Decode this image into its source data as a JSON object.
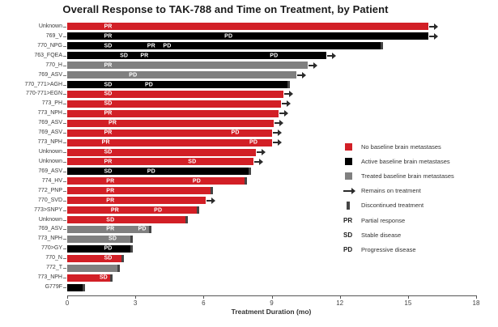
{
  "title": "Overall Response to TAK-788 and Time on Treatment, by Patient",
  "chart_data": {
    "type": "bar",
    "variant": "swimmer-plot",
    "orientation": "horizontal",
    "title": "Overall Response to TAK-788 and Time on Treatment, by Patient",
    "xlabel": "Treatment Duration (mo)",
    "ylabel": "",
    "xlim": [
      0,
      18
    ],
    "xticks": [
      0,
      3,
      6,
      9,
      12,
      15,
      18
    ],
    "grid": false,
    "legend_position": "right",
    "colors": {
      "no_baseline": "#d21f26",
      "active_baseline": "#000000",
      "treated_baseline": "#808080",
      "discontinued_marker": "#454545",
      "arrow": "#2b2b2b",
      "axis": "#555555",
      "bar_label": "#ffffff",
      "text": "#3a3a3a"
    },
    "patients": [
      {
        "label": "Unknown",
        "group": "no_baseline",
        "duration_mo": 15.9,
        "status": "ongoing",
        "responses": [
          {
            "t_mo": 1.8,
            "code": "PR"
          }
        ]
      },
      {
        "label": "769_V",
        "group": "active_baseline",
        "duration_mo": 15.9,
        "status": "ongoing",
        "responses": [
          {
            "t_mo": 1.8,
            "code": "PR"
          },
          {
            "t_mo": 7.1,
            "code": "PD"
          }
        ]
      },
      {
        "label": "770_NPG",
        "group": "active_baseline",
        "duration_mo": 13.9,
        "status": "discontinued",
        "responses": [
          {
            "t_mo": 1.8,
            "code": "SD"
          },
          {
            "t_mo": 3.7,
            "code": "PR"
          },
          {
            "t_mo": 4.4,
            "code": "PD"
          }
        ]
      },
      {
        "label": "763_FQEA",
        "group": "active_baseline",
        "duration_mo": 11.4,
        "status": "ongoing",
        "responses": [
          {
            "t_mo": 2.5,
            "code": "SD"
          },
          {
            "t_mo": 3.4,
            "code": "PR"
          },
          {
            "t_mo": 9.1,
            "code": "PD"
          }
        ]
      },
      {
        "label": "770_H",
        "group": "treated_baseline",
        "duration_mo": 10.6,
        "status": "ongoing",
        "responses": [
          {
            "t_mo": 1.8,
            "code": "PR"
          }
        ]
      },
      {
        "label": "769_ASV",
        "group": "treated_baseline",
        "duration_mo": 10.1,
        "status": "ongoing",
        "responses": [
          {
            "t_mo": 2.9,
            "code": "PD"
          }
        ]
      },
      {
        "label": "770_771>AGH",
        "group": "active_baseline",
        "duration_mo": 9.8,
        "status": "discontinued",
        "responses": [
          {
            "t_mo": 1.8,
            "code": "SD"
          },
          {
            "t_mo": 3.6,
            "code": "PD"
          }
        ]
      },
      {
        "label": "770-771>EGN",
        "group": "no_baseline",
        "duration_mo": 9.5,
        "status": "ongoing",
        "responses": [
          {
            "t_mo": 1.8,
            "code": "SD"
          }
        ]
      },
      {
        "label": "773_PH",
        "group": "no_baseline",
        "duration_mo": 9.4,
        "status": "ongoing",
        "responses": [
          {
            "t_mo": 1.8,
            "code": "SD"
          }
        ]
      },
      {
        "label": "773_NPH",
        "group": "no_baseline",
        "duration_mo": 9.3,
        "status": "ongoing",
        "responses": [
          {
            "t_mo": 1.8,
            "code": "PR"
          }
        ]
      },
      {
        "label": "769_ASV",
        "group": "no_baseline",
        "duration_mo": 9.1,
        "status": "ongoing",
        "responses": [
          {
            "t_mo": 2.0,
            "code": "PR"
          }
        ]
      },
      {
        "label": "769_ASV",
        "group": "no_baseline",
        "duration_mo": 9.0,
        "status": "ongoing",
        "responses": [
          {
            "t_mo": 1.8,
            "code": "PR"
          },
          {
            "t_mo": 7.4,
            "code": "PD"
          }
        ]
      },
      {
        "label": "773_NPH",
        "group": "no_baseline",
        "duration_mo": 9.0,
        "status": "ongoing",
        "responses": [
          {
            "t_mo": 1.7,
            "code": "PR"
          },
          {
            "t_mo": 8.2,
            "code": "PD"
          }
        ]
      },
      {
        "label": "Unknown",
        "group": "no_baseline",
        "duration_mo": 8.3,
        "status": "ongoing",
        "responses": [
          {
            "t_mo": 1.8,
            "code": "SD"
          }
        ]
      },
      {
        "label": "Unknown",
        "group": "no_baseline",
        "duration_mo": 8.2,
        "status": "ongoing",
        "responses": [
          {
            "t_mo": 1.8,
            "code": "PR"
          },
          {
            "t_mo": 5.5,
            "code": "SD"
          }
        ]
      },
      {
        "label": "769_ASV",
        "group": "active_baseline",
        "duration_mo": 8.1,
        "status": "discontinued",
        "responses": [
          {
            "t_mo": 1.8,
            "code": "SD"
          },
          {
            "t_mo": 3.7,
            "code": "PD"
          }
        ]
      },
      {
        "label": "774_HV",
        "group": "no_baseline",
        "duration_mo": 7.9,
        "status": "discontinued",
        "responses": [
          {
            "t_mo": 1.9,
            "code": "PR"
          },
          {
            "t_mo": 5.7,
            "code": "PD"
          }
        ]
      },
      {
        "label": "772_PNP",
        "group": "no_baseline",
        "duration_mo": 6.4,
        "status": "discontinued",
        "responses": [
          {
            "t_mo": 1.9,
            "code": "PR"
          }
        ]
      },
      {
        "label": "770_SVD",
        "group": "no_baseline",
        "duration_mo": 6.1,
        "status": "ongoing",
        "responses": [
          {
            "t_mo": 1.9,
            "code": "PR"
          }
        ]
      },
      {
        "label": "773>SNPY",
        "group": "no_baseline",
        "duration_mo": 5.8,
        "status": "discontinued",
        "responses": [
          {
            "t_mo": 2.1,
            "code": "PR"
          },
          {
            "t_mo": 4.0,
            "code": "PD"
          }
        ]
      },
      {
        "label": "Unknown",
        "group": "no_baseline",
        "duration_mo": 5.3,
        "status": "discontinued",
        "responses": [
          {
            "t_mo": 1.9,
            "code": "SD"
          }
        ]
      },
      {
        "label": "769_ASV",
        "group": "treated_baseline",
        "duration_mo": 3.7,
        "status": "discontinued",
        "responses": [
          {
            "t_mo": 1.9,
            "code": "PR"
          },
          {
            "t_mo": 3.3,
            "code": "PD"
          }
        ]
      },
      {
        "label": "773_NPH",
        "group": "treated_baseline",
        "duration_mo": 2.9,
        "status": "discontinued",
        "responses": [
          {
            "t_mo": 2.0,
            "code": "SD"
          }
        ]
      },
      {
        "label": "770>GY",
        "group": "active_baseline",
        "duration_mo": 2.9,
        "status": "discontinued",
        "responses": [
          {
            "t_mo": 1.8,
            "code": "PD"
          }
        ]
      },
      {
        "label": "770_N",
        "group": "no_baseline",
        "duration_mo": 2.5,
        "status": "discontinued",
        "responses": [
          {
            "t_mo": 1.8,
            "code": "SD"
          }
        ]
      },
      {
        "label": "772_T",
        "group": "treated_baseline",
        "duration_mo": 2.3,
        "status": "discontinued",
        "responses": []
      },
      {
        "label": "773_NPH",
        "group": "no_baseline",
        "duration_mo": 2.0,
        "status": "discontinued",
        "responses": [
          {
            "t_mo": 1.6,
            "code": "SD"
          }
        ]
      },
      {
        "label": "G779F",
        "group": "active_baseline",
        "duration_mo": 0.8,
        "status": "discontinued",
        "responses": []
      }
    ],
    "legend": [
      {
        "icon": "swatch",
        "color_key": "no_baseline",
        "label": "No baseline brain metastases"
      },
      {
        "icon": "swatch",
        "color_key": "active_baseline",
        "label": "Active baseline brain metastases"
      },
      {
        "icon": "swatch",
        "color_key": "treated_baseline",
        "label": "Treated baseline brain metastases"
      },
      {
        "icon": "arrow",
        "color_key": "arrow",
        "label": "Remains on treatment"
      },
      {
        "icon": "dbar",
        "color_key": "discontinued_marker",
        "label": "Discontinued treatment"
      },
      {
        "icon": "code",
        "code": "PR",
        "label": "Partial response"
      },
      {
        "icon": "code",
        "code": "SD",
        "label": "Stable disease"
      },
      {
        "icon": "code",
        "code": "PD",
        "label": "Progressive disease"
      }
    ]
  }
}
